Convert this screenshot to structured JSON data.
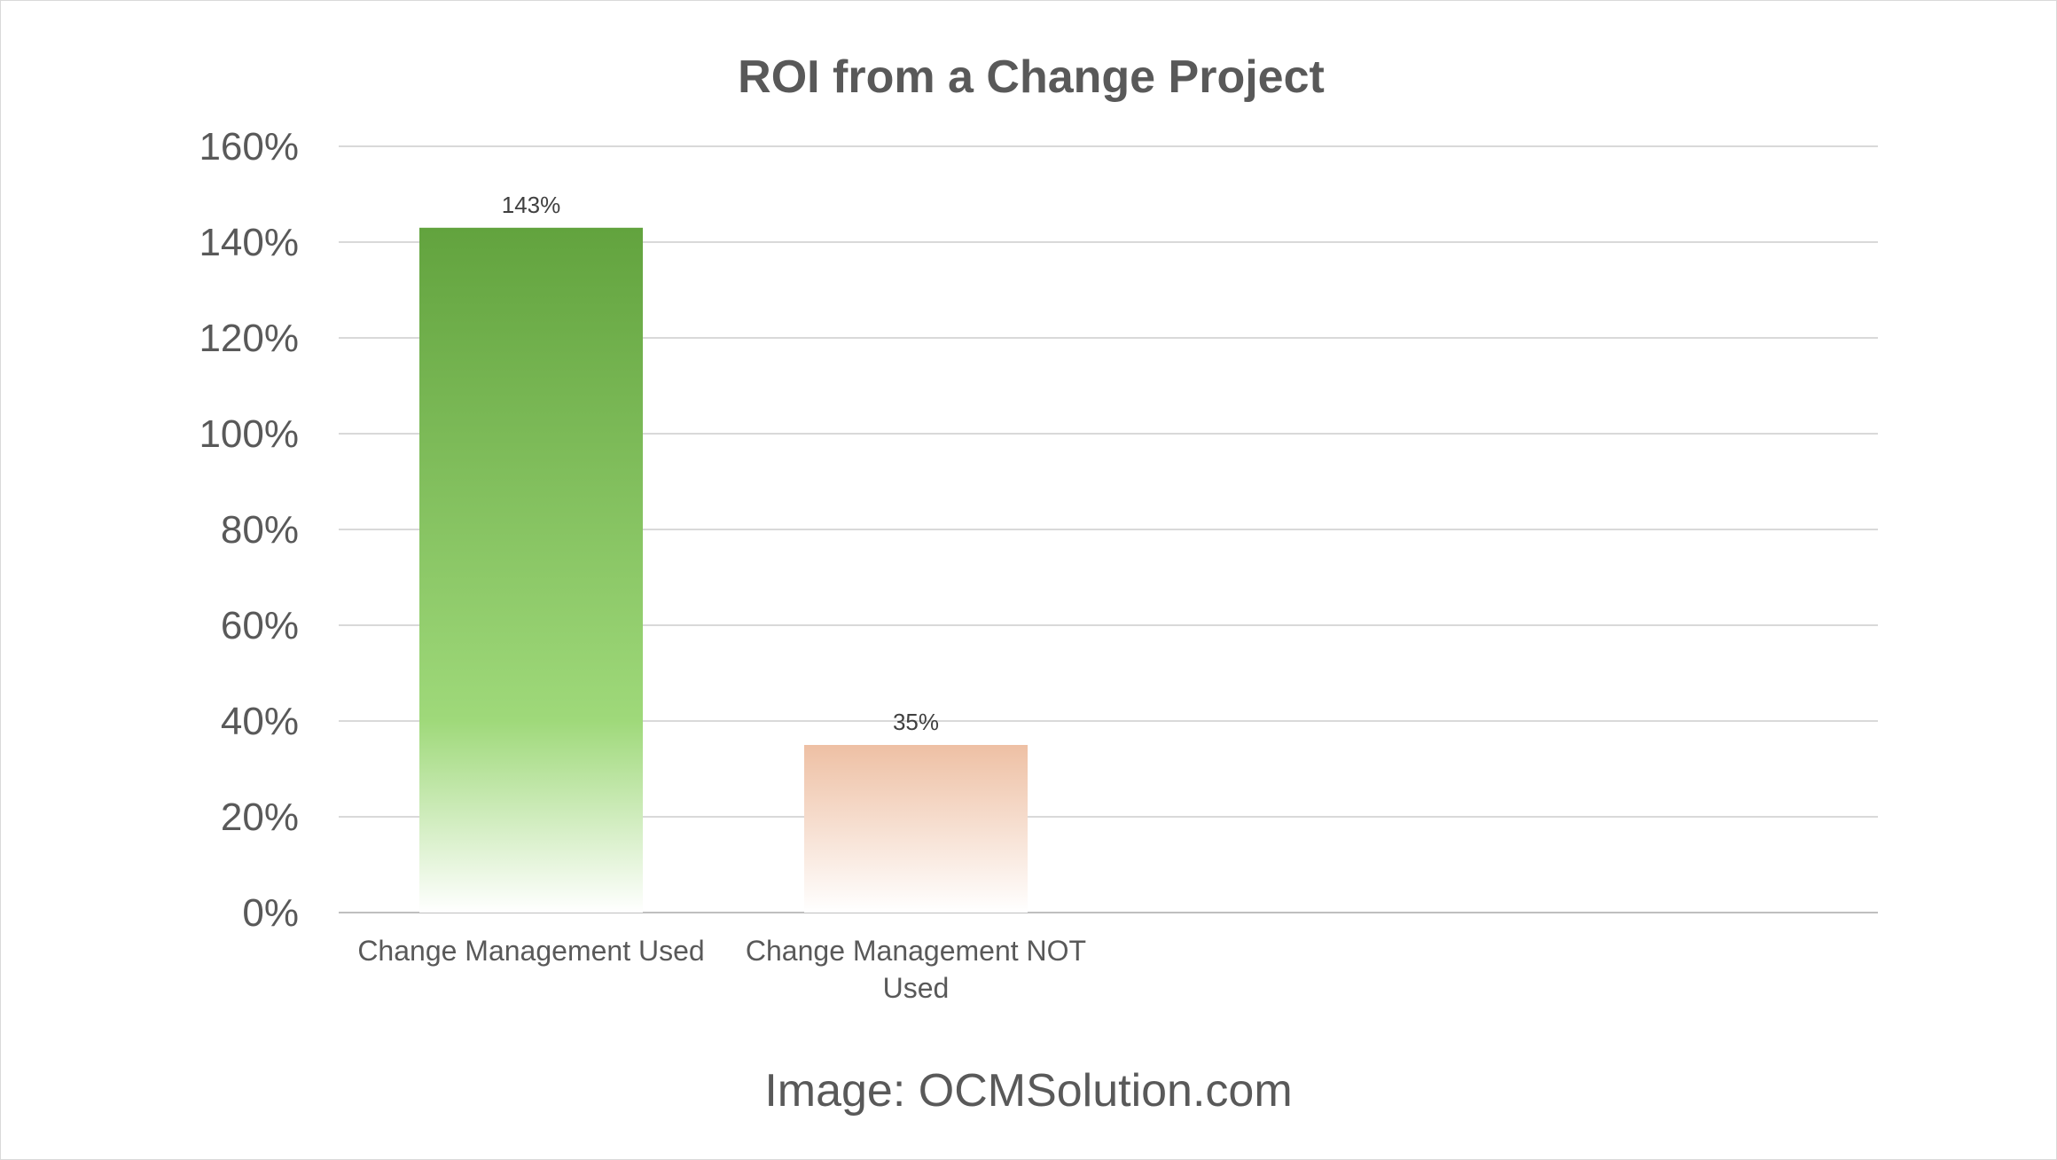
{
  "chart_data": {
    "type": "bar",
    "title": "ROI from a Change Project",
    "categories": [
      "Change Management Used",
      "Change Management NOT Used"
    ],
    "category_lines": [
      [
        "Change Management Used"
      ],
      [
        "Change Management NOT",
        "Used"
      ]
    ],
    "values": [
      143,
      35
    ],
    "data_labels": [
      "143%",
      "35%"
    ],
    "ylim": [
      0,
      160
    ],
    "yticks": [
      0,
      20,
      40,
      60,
      80,
      100,
      120,
      140,
      160
    ],
    "ytick_labels": [
      "0%",
      "20%",
      "40%",
      "60%",
      "80%",
      "100%",
      "120%",
      "140%",
      "160%"
    ],
    "xlabel": "",
    "ylabel": "",
    "grid": true,
    "legend": "none",
    "colors": {
      "bar_1_top": "#62a33e",
      "bar_1_mid": "#9fd97a",
      "bar_1_bottom": "#ffffff",
      "bar_2_top": "#eec0a4",
      "bar_2_bottom": "#ffffff",
      "gridline": "#d9d9d9",
      "text": "#595959"
    }
  },
  "source_text": "Image: OCMSolution.com"
}
